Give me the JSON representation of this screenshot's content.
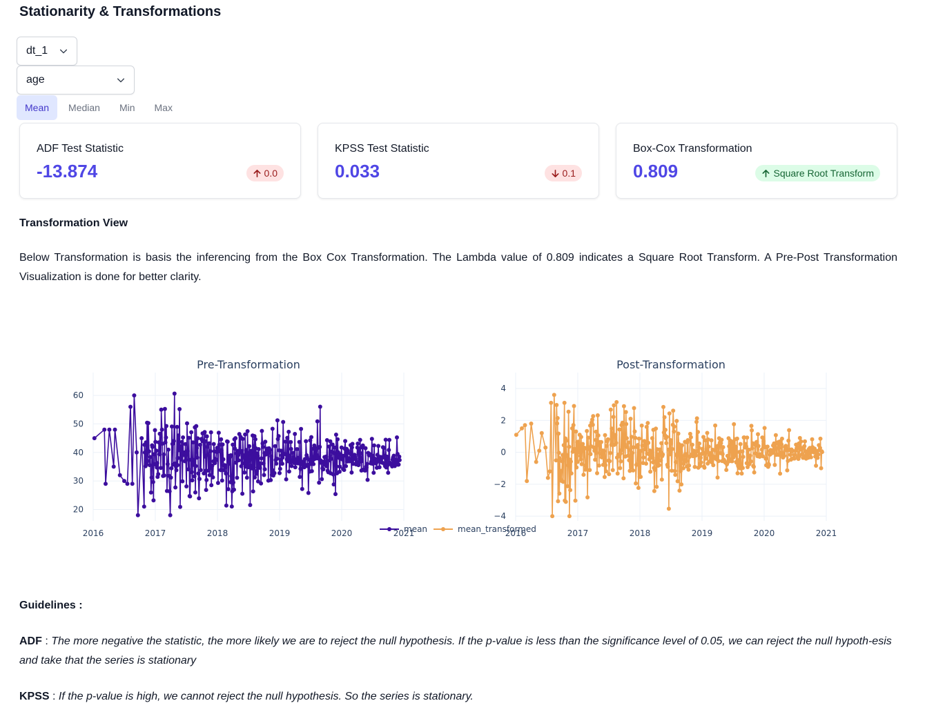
{
  "page": {
    "title": "Stationarity & Transformations"
  },
  "selects": {
    "dataset": {
      "value": "dt_1"
    },
    "column": {
      "value": "age"
    }
  },
  "tabs": [
    {
      "label": "Mean",
      "active": true
    },
    {
      "label": "Median",
      "active": false
    },
    {
      "label": "Min",
      "active": false
    },
    {
      "label": "Max",
      "active": false
    }
  ],
  "metrics": [
    {
      "label": "ADF Test Statistic",
      "value": "-13.874",
      "delta": "0.0",
      "direction": "up",
      "tone": "red"
    },
    {
      "label": "KPSS Test Statistic",
      "value": "0.033",
      "delta": "0.1",
      "direction": "down",
      "tone": "red"
    },
    {
      "label": "Box-Cox Transformation",
      "value": "0.809",
      "delta": "Square Root Transform",
      "direction": "up",
      "tone": "green"
    }
  ],
  "transformation": {
    "heading": "Transformation View",
    "text": "Below Transformation is basis the inferencing from the Box Cox Transformation. The Lambda value of 0.809 indicates a Square Root Transform. A Pre-Post Transformation Visualization is done for better clarity."
  },
  "chart_data": [
    {
      "type": "line",
      "title": "Pre-Transformation",
      "series": [
        {
          "name": "mean",
          "color": "#3c0e9e"
        }
      ],
      "x_ticks": [
        "2016",
        "2017",
        "2018",
        "2019",
        "2020",
        "2021"
      ],
      "xlim": [
        2016,
        2021
      ],
      "y_ticks": [
        20,
        30,
        40,
        50,
        60
      ],
      "ylim": [
        16,
        68
      ],
      "grid": true,
      "legend": "bottom-center"
    },
    {
      "type": "line",
      "title": "Post-Transformation",
      "series": [
        {
          "name": "mean_transformed",
          "color": "#eea24f"
        }
      ],
      "x_ticks": [
        "2016",
        "2017",
        "2018",
        "2019",
        "2020",
        "2021"
      ],
      "xlim": [
        2016,
        2021
      ],
      "y_ticks": [
        -4,
        -2,
        0,
        2,
        4
      ],
      "ylim": [
        -4.3,
        5
      ],
      "grid": true,
      "legend": "bottom-center"
    }
  ],
  "guidelines": {
    "heading": "Guidelines :",
    "adf_label": "ADF",
    "adf_text": "The more negative the statistic, the more likely we are to reject the null hypothesis. If the p-value is less than the significance level of 0.05, we can reject the null hypoth-esis and take that the series is stationary",
    "kpss_label": "KPSS",
    "kpss_text": "If the p-value is high, we cannot reject the null hypothesis. So the series is stationary."
  }
}
